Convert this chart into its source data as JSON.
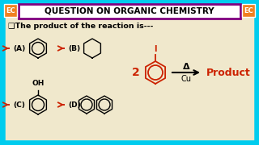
{
  "bg_color": "#f0e8cc",
  "border_color": "#00ccee",
  "title_text": "QUESTION ON ORGANIC CHEMISTRY",
  "title_bg": "#ffffff",
  "title_border": "#800080",
  "ec_bg": "#f08020",
  "ec_text": "EC",
  "question_text": "❑The product of the reaction is---",
  "arrow_label_top": "Δ",
  "arrow_label_bot": "Cu",
  "product_text": "Product",
  "coeff_text": "2",
  "iodine_text": "I",
  "oh_text": "OH",
  "option_a": "(A)",
  "option_b": "(B)",
  "option_c": "(C)",
  "option_d": "(D)",
  "option_color": "#cc2200",
  "product_color": "#cc2200",
  "react_ring_color": "#cc2200",
  "ring_color": "#000000",
  "text_color": "#000000",
  "question_color": "#cc0000"
}
